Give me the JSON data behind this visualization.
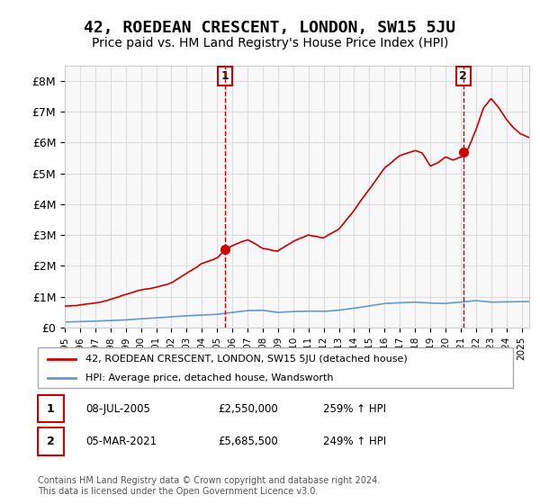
{
  "title": "42, ROEDEAN CRESCENT, LONDON, SW15 5JU",
  "subtitle": "Price paid vs. HM Land Registry's House Price Index (HPI)",
  "title_fontsize": 13,
  "subtitle_fontsize": 10,
  "xlabel": "",
  "ylabel": "",
  "ylim": [
    0,
    8500000
  ],
  "yticks": [
    0,
    1000000,
    2000000,
    3000000,
    4000000,
    5000000,
    6000000,
    7000000,
    8000000
  ],
  "ytick_labels": [
    "£0",
    "£1M",
    "£2M",
    "£3M",
    "£4M",
    "£5M",
    "£6M",
    "£7M",
    "£8M"
  ],
  "background_color": "#ffffff",
  "plot_bg_color": "#f8f8f8",
  "grid_color": "#dddddd",
  "hpi_line_color": "#6699cc",
  "price_line_color": "#cc0000",
  "marker1_color": "#cc0000",
  "marker2_color": "#cc0000",
  "vline_color": "#cc0000",
  "sale1_date_x": 2005.52,
  "sale1_price": 2550000,
  "sale2_date_x": 2021.17,
  "sale2_price": 5685500,
  "annotation1_label": "1",
  "annotation2_label": "2",
  "legend_entries": [
    "42, ROEDEAN CRESCENT, LONDON, SW15 5JU (detached house)",
    "HPI: Average price, detached house, Wandsworth"
  ],
  "table_row1": [
    "1",
    "08-JUL-2005",
    "£2,550,000",
    "259% ↑ HPI"
  ],
  "table_row2": [
    "2",
    "05-MAR-2021",
    "£5,685,500",
    "249% ↑ HPI"
  ],
  "footer": "Contains HM Land Registry data © Crown copyright and database right 2024.\nThis data is licensed under the Open Government Licence v3.0.",
  "xmin": 1995.0,
  "xmax": 2025.5,
  "xticks": [
    1995,
    1996,
    1997,
    1998,
    1999,
    2000,
    2001,
    2002,
    2003,
    2004,
    2005,
    2006,
    2007,
    2008,
    2009,
    2010,
    2011,
    2012,
    2013,
    2014,
    2015,
    2016,
    2017,
    2018,
    2019,
    2020,
    2021,
    2022,
    2023,
    2024,
    2025
  ]
}
